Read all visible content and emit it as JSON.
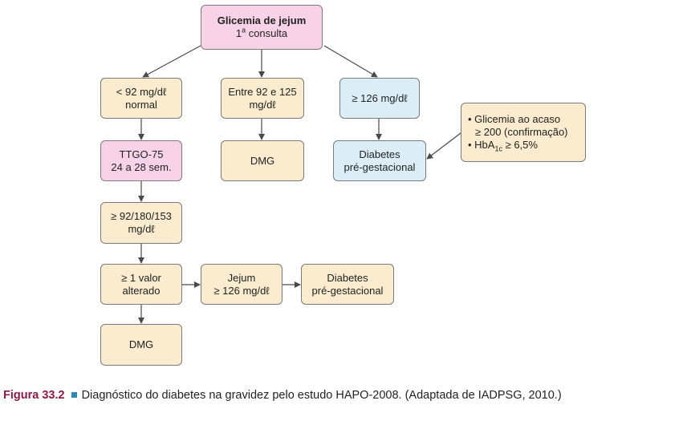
{
  "diagram": {
    "root": {
      "title": "Glicemia de jejum",
      "subtitle_num": "1",
      "subtitle_sup": "a",
      "subtitle_rest": " consulta"
    },
    "low": {
      "line1": "< 92 mg/dℓ",
      "line2": "normal"
    },
    "mid": {
      "line1": "Entre 92 e 125",
      "line2": "mg/dℓ"
    },
    "high": {
      "line1": "≥ 126 mg/dℓ"
    },
    "ttgo": {
      "line1": "TTGO-75",
      "line2": "24 a 28 sem."
    },
    "dmg_mid": {
      "line1": "DMG"
    },
    "pregest_top": {
      "line1": "Diabetes",
      "line2": "pré-gestacional"
    },
    "note": {
      "item1_line1": "• Glicemia ao acaso",
      "item1_line2": "≥ 200 (confirmação)",
      "item2_prefix": "• HbA",
      "item2_sub": "1c",
      "item2_suffix": " ≥ 6,5%"
    },
    "thresholds": {
      "line1": "≥ 92/180/153",
      "line2": "mg/dℓ"
    },
    "altered": {
      "line1": "≥ 1 valor",
      "line2": "alterado"
    },
    "jejum": {
      "line1": "Jejum",
      "line2": "≥ 126 mg/dℓ"
    },
    "pregest_bottom": {
      "line1": "Diabetes",
      "line2": "pré-gestacional"
    },
    "dmg_bottom": {
      "line1": "DMG"
    }
  },
  "caption": {
    "label": "Figura 33.2",
    "text": "Diagnóstico do diabetes na gravidez pelo estudo HAPO-2008. (Adaptada de IADPSG, 2010.)"
  },
  "colors": {
    "tan": "#fbeccf",
    "pink": "#f8d3e7",
    "blue": "#dbeef8",
    "arrow": "#4a4a4a",
    "caption_label": "#8b1a44",
    "caption_square": "#2a8ab0"
  }
}
